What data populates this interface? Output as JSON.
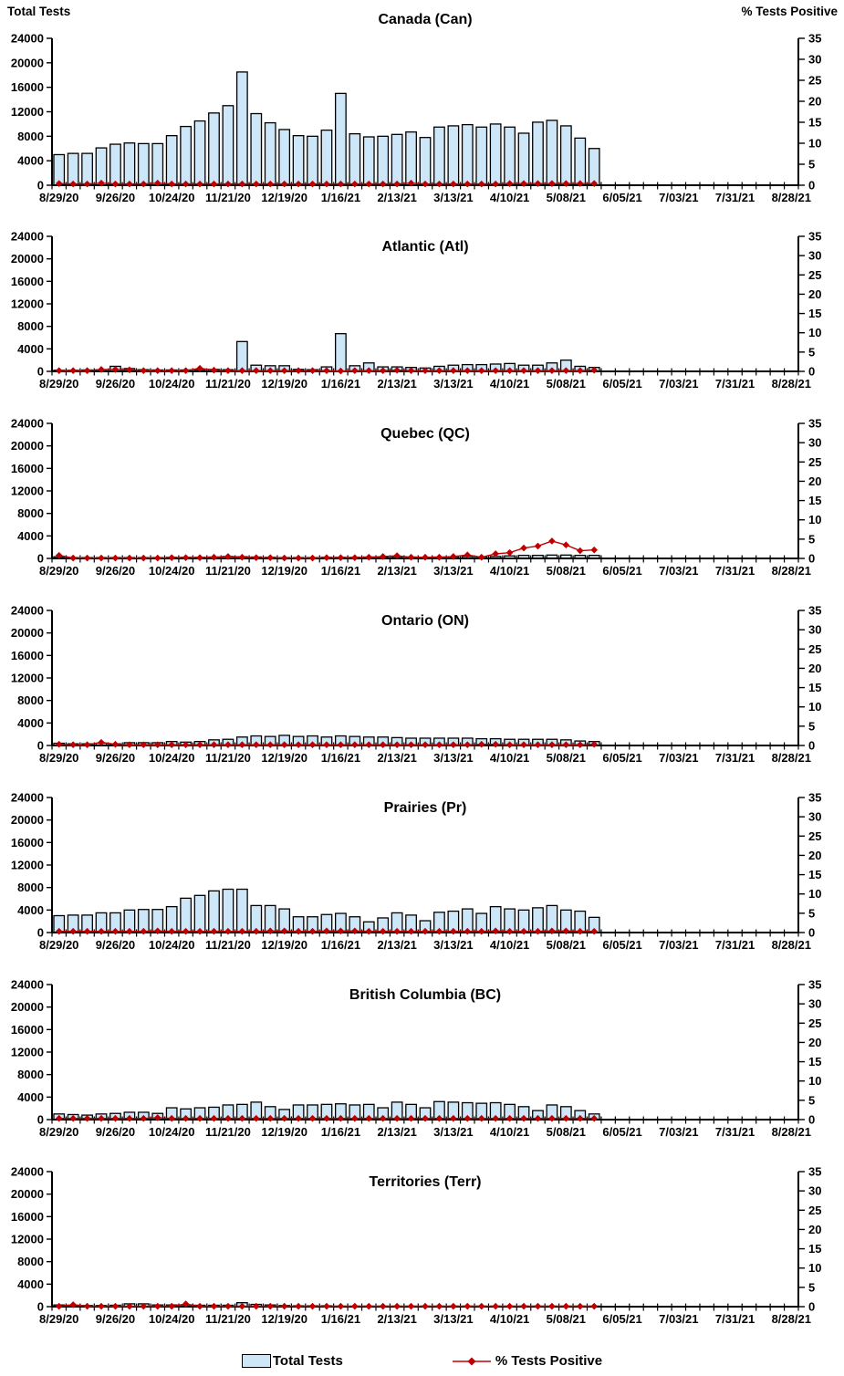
{
  "legend": {
    "total_tests_label": "Total Tests",
    "pct_positive_label": "% Tests Positive"
  },
  "colors": {
    "bar_fill": "#CDE7F8",
    "bar_border": "#000000",
    "line": "#C00000",
    "marker": "#C00000",
    "axis": "#000000",
    "text": "#000000"
  },
  "chart_data": {
    "type": "bar+line multi-panel",
    "left_axis": {
      "title": "Total Tests",
      "min": 0,
      "max": 24000,
      "step": 4000,
      "tick_labels": [
        "0",
        "4000",
        "8000",
        "12000",
        "16000",
        "20000",
        "24000"
      ]
    },
    "right_axis": {
      "title": "% Tests Positive",
      "min": 0,
      "max": 35,
      "step": 5,
      "tick_labels": [
        "0",
        "5",
        "10",
        "15",
        "20",
        "25",
        "30",
        "35"
      ]
    },
    "x_axis": {
      "total_week_slots": 53,
      "major_tick_labels": [
        "8/29/20",
        "9/26/20",
        "10/24/20",
        "11/21/20",
        "12/19/20",
        "1/16/21",
        "2/13/21",
        "3/13/21",
        "4/10/21",
        "5/08/21",
        "6/05/21",
        "7/03/21",
        "7/31/21",
        "8/28/21"
      ],
      "major_label_every_n_weeks": 4
    },
    "categories": [
      "8/29/20",
      "9/05/20",
      "9/12/20",
      "9/19/20",
      "9/26/20",
      "10/03/20",
      "10/10/20",
      "10/17/20",
      "10/24/20",
      "10/31/20",
      "11/07/20",
      "11/14/20",
      "11/21/20",
      "11/28/20",
      "12/05/20",
      "12/12/20",
      "12/19/20",
      "12/26/20",
      "1/02/21",
      "1/09/21",
      "1/16/21",
      "1/23/21",
      "1/30/21",
      "2/06/21",
      "2/13/21",
      "2/20/21",
      "2/27/21",
      "3/06/21",
      "3/13/21",
      "3/20/21",
      "3/27/21",
      "4/03/21",
      "4/10/21",
      "4/17/21",
      "4/24/21",
      "5/01/21",
      "5/08/21",
      "5/15/21",
      "5/22/21"
    ],
    "legend": [
      "Total Tests",
      "% Tests Positive"
    ],
    "charts": [
      {
        "title": "Canada (Can)",
        "total_tests": [
          5000,
          5200,
          5200,
          6100,
          6700,
          6900,
          6800,
          6800,
          8100,
          9600,
          10500,
          11800,
          13000,
          18500,
          11700,
          10200,
          9100,
          8100,
          8000,
          9000,
          15000,
          8400,
          7900,
          8000,
          8300,
          8700,
          7800,
          9500,
          9700,
          9900,
          9500,
          10000,
          9500,
          8500,
          10300,
          10600,
          9700,
          7700,
          6000
        ],
        "pct_tests_positive": [
          0.4,
          0.3,
          0.3,
          0.5,
          0.3,
          0.3,
          0.3,
          0.5,
          0.3,
          0.3,
          0.3,
          0.3,
          0.3,
          0.3,
          0.3,
          0.3,
          0.3,
          0.3,
          0.3,
          0.3,
          0.3,
          0.3,
          0.3,
          0.3,
          0.3,
          0.5,
          0.3,
          0.3,
          0.3,
          0.3,
          0.3,
          0.3,
          0.4,
          0.4,
          0.4,
          0.4,
          0.4,
          0.4,
          0.4
        ]
      },
      {
        "title": "Atlantic (Atl)",
        "total_tests": [
          200,
          200,
          250,
          300,
          900,
          500,
          300,
          250,
          250,
          250,
          300,
          350,
          300,
          5300,
          1100,
          1000,
          1000,
          350,
          300,
          800,
          6700,
          1000,
          1500,
          800,
          800,
          700,
          600,
          900,
          1100,
          1200,
          1200,
          1300,
          1400,
          1100,
          1100,
          1500,
          2000,
          900,
          700
        ],
        "pct_tests_positive": [
          0.2,
          0.2,
          0.2,
          0.5,
          0.5,
          0.4,
          0.2,
          0.2,
          0.2,
          0.2,
          0.8,
          0.3,
          0.2,
          0.2,
          0.2,
          0.2,
          0.2,
          0.2,
          0.2,
          0.2,
          0.1,
          0.2,
          0.2,
          0.2,
          0.3,
          0.2,
          0.2,
          0.2,
          0.2,
          0.2,
          0.2,
          0.2,
          0.2,
          0.2,
          0.2,
          0.2,
          0.2,
          0.2,
          0.3
        ]
      },
      {
        "title": "Quebec (QC)",
        "total_tests": [
          300,
          150,
          150,
          150,
          150,
          150,
          150,
          150,
          200,
          200,
          200,
          250,
          350,
          300,
          250,
          200,
          150,
          150,
          150,
          200,
          200,
          200,
          250,
          250,
          300,
          250,
          200,
          250,
          300,
          350,
          300,
          350,
          450,
          550,
          550,
          600,
          600,
          550,
          550
        ],
        "pct_tests_positive": [
          0.8,
          0.1,
          0.1,
          0.1,
          0.1,
          0.1,
          0.1,
          0.1,
          0.2,
          0.2,
          0.2,
          0.3,
          0.5,
          0.3,
          0.2,
          0.2,
          0.1,
          0.1,
          0.1,
          0.2,
          0.2,
          0.2,
          0.3,
          0.5,
          0.7,
          0.3,
          0.3,
          0.3,
          0.5,
          0.9,
          0.3,
          1.2,
          1.5,
          2.7,
          3.2,
          4.5,
          3.5,
          2.0,
          2.2
        ]
      },
      {
        "title": "Ontario (ON)",
        "total_tests": [
          400,
          300,
          300,
          400,
          300,
          500,
          500,
          500,
          700,
          600,
          700,
          1000,
          1100,
          1500,
          1700,
          1600,
          1800,
          1600,
          1700,
          1500,
          1700,
          1600,
          1500,
          1500,
          1400,
          1300,
          1300,
          1300,
          1300,
          1300,
          1200,
          1200,
          1100,
          1100,
          1100,
          1100,
          1000,
          800,
          700
        ],
        "pct_tests_positive": [
          0.3,
          0.2,
          0.2,
          0.8,
          0.3,
          0.2,
          0.2,
          0.2,
          0.2,
          0.2,
          0.2,
          0.2,
          0.2,
          0.2,
          0.2,
          0.2,
          0.2,
          0.2,
          0.2,
          0.2,
          0.2,
          0.2,
          0.2,
          0.2,
          0.2,
          0.2,
          0.2,
          0.2,
          0.2,
          0.2,
          0.3,
          0.3,
          0.2,
          0.2,
          0.2,
          0.2,
          0.2,
          0.2,
          0.3
        ]
      },
      {
        "title": "Prairies (Pr)",
        "total_tests": [
          3000,
          3100,
          3100,
          3500,
          3500,
          4000,
          4100,
          4100,
          4600,
          6100,
          6600,
          7400,
          7700,
          7700,
          4800,
          4800,
          4200,
          2800,
          2800,
          3200,
          3400,
          2800,
          1900,
          2600,
          3500,
          3100,
          2100,
          3600,
          3800,
          4200,
          3400,
          4600,
          4200,
          4000,
          4400,
          4800,
          4000,
          3800,
          2700
        ],
        "pct_tests_positive": [
          0.3,
          0.3,
          0.3,
          0.3,
          0.3,
          0.3,
          0.3,
          0.4,
          0.3,
          0.3,
          0.3,
          0.3,
          0.3,
          0.3,
          0.3,
          0.4,
          0.4,
          0.3,
          0.3,
          0.4,
          0.4,
          0.4,
          0.3,
          0.3,
          0.3,
          0.3,
          0.3,
          0.3,
          0.3,
          0.3,
          0.3,
          0.4,
          0.3,
          0.3,
          0.3,
          0.4,
          0.4,
          0.3,
          0.3
        ]
      },
      {
        "title": "British Columbia (BC)",
        "total_tests": [
          1000,
          900,
          800,
          1000,
          1100,
          1300,
          1300,
          1100,
          2100,
          1900,
          2100,
          2200,
          2600,
          2700,
          3100,
          2300,
          1800,
          2600,
          2600,
          2700,
          2800,
          2600,
          2700,
          2100,
          3100,
          2700,
          2100,
          3200,
          3100,
          3000,
          2900,
          3000,
          2700,
          2300,
          1600,
          2600,
          2300,
          1600,
          1000
        ],
        "pct_tests_positive": [
          0.3,
          0.3,
          0.3,
          0.3,
          0.3,
          0.3,
          0.3,
          0.5,
          0.3,
          0.3,
          0.3,
          0.3,
          0.3,
          0.3,
          0.3,
          0.3,
          0.3,
          0.3,
          0.3,
          0.3,
          0.3,
          0.3,
          0.3,
          0.3,
          0.3,
          0.3,
          0.3,
          0.3,
          0.3,
          0.3,
          0.3,
          0.3,
          0.3,
          0.3,
          0.3,
          0.3,
          0.3,
          0.3,
          0.3
        ]
      },
      {
        "title": "Territories (Terr)",
        "total_tests": [
          300,
          250,
          200,
          200,
          250,
          500,
          500,
          300,
          300,
          300,
          250,
          250,
          250,
          700,
          400,
          300,
          200,
          150,
          150,
          150,
          100,
          100,
          100,
          100,
          100,
          100,
          100,
          100,
          100,
          100,
          100,
          100,
          100,
          100,
          100,
          100,
          100,
          100,
          100
        ],
        "pct_tests_positive": [
          0.1,
          0.5,
          0.1,
          0.1,
          0.1,
          0.1,
          0.1,
          0.1,
          0.1,
          0.7,
          0.1,
          0.1,
          0.1,
          0.1,
          0.1,
          0.1,
          0.1,
          0.1,
          0.1,
          0.1,
          0.1,
          0.1,
          0.1,
          0.1,
          0.1,
          0.1,
          0.1,
          0.1,
          0.1,
          0.1,
          0.1,
          0.1,
          0.1,
          0.1,
          0.1,
          0.1,
          0.1,
          0.1,
          0.1
        ]
      }
    ]
  }
}
